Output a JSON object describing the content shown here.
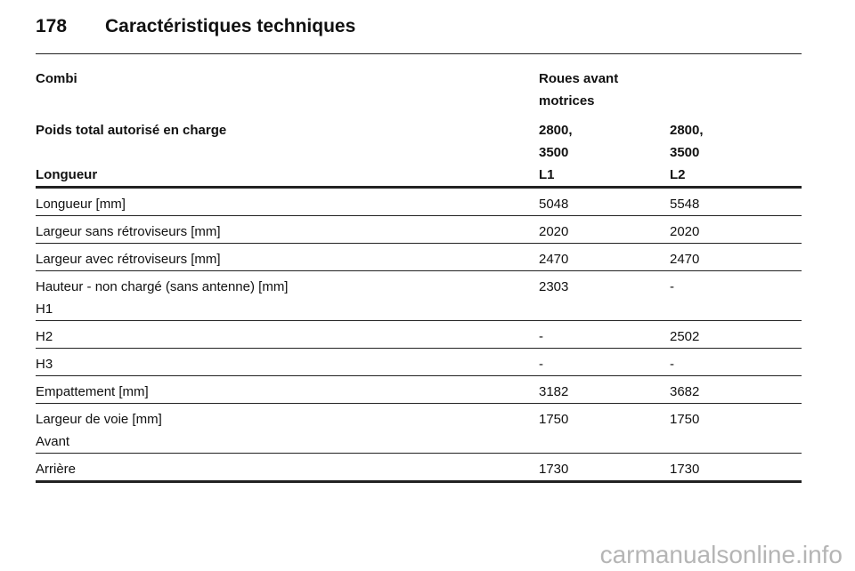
{
  "header": {
    "page_number": "178",
    "title": "Caractéristiques techniques"
  },
  "table": {
    "head": [
      [
        [
          "Combi"
        ],
        [
          "Roues avant motrices"
        ],
        []
      ],
      [
        [
          "Poids total autorisé en charge"
        ],
        [
          "2800,",
          "3500"
        ],
        [
          "2800,",
          "3500"
        ]
      ],
      [
        [
          "Longueur"
        ],
        [
          "L1"
        ],
        [
          "L2"
        ]
      ]
    ],
    "rows": [
      [
        [
          "Longueur [mm]"
        ],
        [
          "5048"
        ],
        [
          "5548"
        ]
      ],
      [
        [
          "Largeur sans rétroviseurs [mm]"
        ],
        [
          "2020"
        ],
        [
          "2020"
        ]
      ],
      [
        [
          "Largeur avec rétroviseurs [mm]"
        ],
        [
          "2470"
        ],
        [
          "2470"
        ]
      ],
      [
        [
          "Hauteur - non chargé (sans antenne) [mm]",
          "H1"
        ],
        [
          "2303"
        ],
        [
          "-"
        ]
      ],
      [
        [
          "H2"
        ],
        [
          "-"
        ],
        [
          "2502"
        ]
      ],
      [
        [
          "H3"
        ],
        [
          "-"
        ],
        [
          "-"
        ]
      ],
      [
        [
          "Empattement [mm]"
        ],
        [
          "3182"
        ],
        [
          "3682"
        ]
      ],
      [
        [
          "Largeur de voie [mm]",
          "Avant"
        ],
        [
          "1750"
        ],
        [
          "1750"
        ]
      ],
      [
        [
          "Arrière"
        ],
        [
          "1730"
        ],
        [
          "1730"
        ]
      ]
    ]
  },
  "watermark": "carmanualsonline.info"
}
